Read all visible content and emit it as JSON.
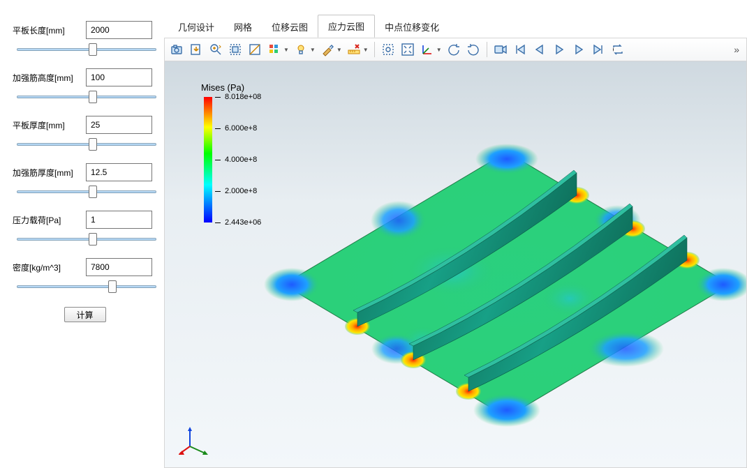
{
  "params": [
    {
      "label": "平板长度[mm]",
      "value": "2000",
      "slider": 55
    },
    {
      "label": "加强筋高度[mm]",
      "value": "100",
      "slider": 55
    },
    {
      "label": "平板厚度[mm]",
      "value": "25",
      "slider": 55
    },
    {
      "label": "加强筋厚度[mm]",
      "value": "12.5",
      "slider": 55
    },
    {
      "label": "压力载荷[Pa]",
      "value": "1",
      "slider": 55
    },
    {
      "label": "密度[kg/m^3]",
      "value": "7800",
      "slider": 70
    }
  ],
  "compute_label": "计算",
  "tabs": {
    "items": [
      {
        "label": "几何设计"
      },
      {
        "label": "网格"
      },
      {
        "label": "位移云图"
      },
      {
        "label": "应力云图"
      },
      {
        "label": "中点位移变化"
      }
    ],
    "active_index": 3
  },
  "legend": {
    "title": "Mises (Pa)",
    "ticks": [
      {
        "label": "8.018e+08",
        "pos": 0
      },
      {
        "label": "6.000e+8",
        "pos": 25
      },
      {
        "label": "4.000e+8",
        "pos": 50
      },
      {
        "label": "2.000e+8",
        "pos": 75
      },
      {
        "label": "2.443e+06",
        "pos": 100
      }
    ],
    "gradient_colors": [
      "#ff0000",
      "#ff7f00",
      "#ffff00",
      "#00ff00",
      "#00ffff",
      "#0000ff"
    ]
  },
  "toolbar_icons": [
    "camera",
    "export",
    "zoom-in",
    "select-box",
    "clip-plane",
    "colors",
    "lights",
    "brush",
    "ruler-delete",
    "sep",
    "fit-window",
    "fit-all",
    "axes",
    "rotate-ccw",
    "rotate-cw",
    "sep",
    "video",
    "skip-first",
    "frame-prev",
    "play",
    "frame-next",
    "skip-last",
    "loop"
  ],
  "triad_colors": {
    "x": "#d11",
    "y": "#1a8a1a",
    "z": "#1144dd"
  },
  "plate": {
    "base_color": "#2ecc71",
    "mid_color": "#56d88a",
    "cool_color": "#1e90ff",
    "hot_color": "#ff2a00",
    "warm_color": "#ffe600",
    "rib_dark": "#0e6e5a",
    "rib_light": "#2da98e",
    "edge_color": "#1e7a45"
  }
}
